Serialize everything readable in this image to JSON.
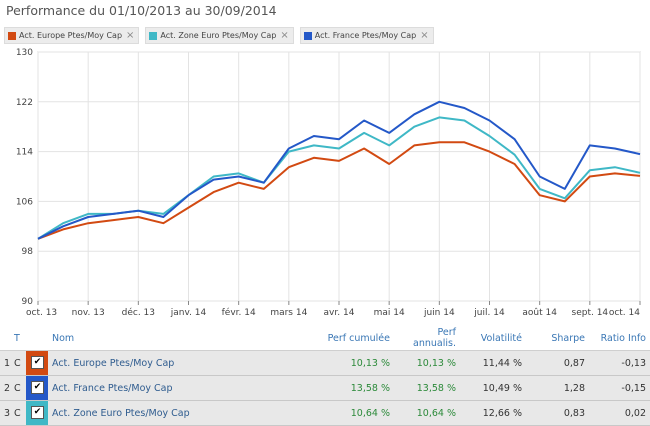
{
  "title": "Performance du 01/10/2013 au 30/09/2014",
  "legend": [
    {
      "label": "Act. Europe Ptes/Moy Cap",
      "color": "#d24a12"
    },
    {
      "label": "Act. Zone Euro Ptes/Moy Cap",
      "color": "#3fb8c6"
    },
    {
      "label": "Act. France Ptes/Moy Cap",
      "color": "#2458c8"
    }
  ],
  "legend_close": "×",
  "chart_data": {
    "type": "line",
    "x_tick_labels": [
      "oct. 13",
      "nov. 13",
      "déc. 13",
      "janv. 14",
      "févr. 14",
      "mars 14",
      "avr. 14",
      "mai 14",
      "juin 14",
      "juil. 14",
      "août 14",
      "sept. 14",
      "oct. 14"
    ],
    "y_ticks": [
      90,
      98,
      106,
      114,
      122,
      130
    ],
    "ylim": [
      90,
      130
    ],
    "grid": true,
    "legend_position": "top-left",
    "x": [
      "2013-10",
      "2013-10",
      "2013-11",
      "2013-11",
      "2013-12",
      "2013-12",
      "2014-01",
      "2014-01",
      "2014-02",
      "2014-02",
      "2014-03",
      "2014-03",
      "2014-04",
      "2014-04",
      "2014-05",
      "2014-05",
      "2014-06",
      "2014-06",
      "2014-07",
      "2014-07",
      "2014-08",
      "2014-08",
      "2014-09",
      "2014-09",
      "2014-10"
    ],
    "series": [
      {
        "name": "Act. Europe Ptes/Moy Cap",
        "color": "#d24a12",
        "values": [
          100,
          101.5,
          102.5,
          103,
          103.5,
          102.5,
          105,
          107.5,
          109,
          108,
          111.5,
          113,
          112.5,
          114.5,
          112,
          115,
          115.5,
          115.5,
          114,
          112,
          107,
          106,
          110,
          110.5,
          110.1
        ]
      },
      {
        "name": "Act. Zone Euro Ptes/Moy Cap",
        "color": "#3fb8c6",
        "values": [
          100,
          102.5,
          104,
          104,
          104.5,
          104,
          107,
          110,
          110.5,
          109,
          114,
          115,
          114.5,
          117,
          115,
          118,
          119.5,
          119,
          116.5,
          113.5,
          108,
          106.5,
          111,
          111.5,
          110.6
        ]
      },
      {
        "name": "Act. France Ptes/Moy Cap",
        "color": "#2458c8",
        "values": [
          100,
          102,
          103.5,
          104,
          104.5,
          103.5,
          107,
          109.5,
          110,
          109,
          114.5,
          116.5,
          116,
          119,
          117,
          120,
          122,
          121,
          119,
          116,
          110,
          108,
          115,
          114.5,
          113.6
        ]
      }
    ]
  },
  "table": {
    "headers": {
      "t": "T",
      "name": "Nom",
      "perf": "Perf cumulée",
      "annual_1": "Perf",
      "annual_2": "annualis.",
      "vol": "Volatilité",
      "sharpe": "Sharpe",
      "ratio": "Ratio Info"
    },
    "rows": [
      {
        "idx": "1",
        "t": "C",
        "check": "✔",
        "color": "#d24a12",
        "name": "Act. Europe Ptes/Moy Cap",
        "perf": "10,13 %",
        "annual": "10,13 %",
        "vol": "11,44 %",
        "sharpe": "0,87",
        "ratio": "-0,13"
      },
      {
        "idx": "2",
        "t": "C",
        "check": "✔",
        "color": "#2458c8",
        "name": "Act. France Ptes/Moy Cap",
        "perf": "13,58 %",
        "annual": "13,58 %",
        "vol": "10,49 %",
        "sharpe": "1,28",
        "ratio": "-0,15"
      },
      {
        "idx": "3",
        "t": "C",
        "check": "✔",
        "color": "#3fb8c6",
        "name": "Act. Zone Euro Ptes/Moy Cap",
        "perf": "10,64 %",
        "annual": "10,64 %",
        "vol": "12,66 %",
        "sharpe": "0,83",
        "ratio": "0,02"
      }
    ]
  }
}
